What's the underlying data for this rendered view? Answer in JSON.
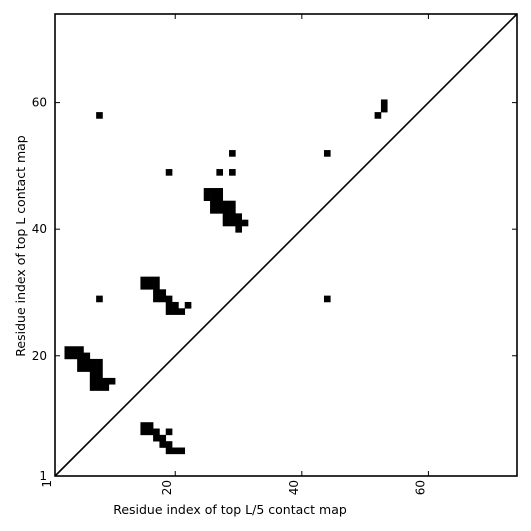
{
  "chart_data": {
    "type": "heatmap",
    "title": "",
    "xlabel": "Residue index of top L/5 contact map",
    "ylabel": "Residue index of top L contact map",
    "xlim": [
      1,
      74
    ],
    "ylim": [
      1,
      74
    ],
    "xticks": [
      1,
      20,
      40,
      60
    ],
    "yticks": [
      1,
      20,
      40,
      60
    ],
    "xtick_labels": [
      "1",
      "20",
      "40",
      "60"
    ],
    "ytick_labels": [
      "1",
      "20",
      "40",
      "60"
    ],
    "xtick_rotation": -90,
    "diagonal": true,
    "grid": false,
    "cell_color": "#000000",
    "line_color": "#000000",
    "background": "#ffffff",
    "cells_upper_top_L": [
      [
        3,
        20
      ],
      [
        3,
        21
      ],
      [
        4,
        20
      ],
      [
        4,
        21
      ],
      [
        5,
        20
      ],
      [
        5,
        21
      ],
      [
        5,
        18
      ],
      [
        5,
        19
      ],
      [
        6,
        18
      ],
      [
        6,
        19
      ],
      [
        6,
        20
      ],
      [
        7,
        18
      ],
      [
        7,
        19
      ],
      [
        8,
        18
      ],
      [
        8,
        19
      ],
      [
        7,
        15
      ],
      [
        7,
        16
      ],
      [
        7,
        17
      ],
      [
        8,
        15
      ],
      [
        8,
        16
      ],
      [
        8,
        17
      ],
      [
        9,
        15
      ],
      [
        9,
        16
      ],
      [
        10,
        16
      ],
      [
        8,
        29
      ],
      [
        8,
        58
      ],
      [
        15,
        31
      ],
      [
        15,
        32
      ],
      [
        16,
        31
      ],
      [
        16,
        32
      ],
      [
        17,
        31
      ],
      [
        17,
        32
      ],
      [
        17,
        29
      ],
      [
        17,
        30
      ],
      [
        18,
        29
      ],
      [
        18,
        30
      ],
      [
        19,
        29
      ],
      [
        19,
        27
      ],
      [
        19,
        28
      ],
      [
        20,
        27
      ],
      [
        20,
        28
      ],
      [
        21,
        27
      ],
      [
        22,
        28
      ],
      [
        19,
        49
      ],
      [
        25,
        45
      ],
      [
        25,
        46
      ],
      [
        26,
        45
      ],
      [
        26,
        46
      ],
      [
        27,
        45
      ],
      [
        27,
        46
      ],
      [
        26,
        43
      ],
      [
        26,
        44
      ],
      [
        27,
        43
      ],
      [
        27,
        44
      ],
      [
        28,
        43
      ],
      [
        28,
        44
      ],
      [
        29,
        43
      ],
      [
        29,
        44
      ],
      [
        28,
        41
      ],
      [
        28,
        42
      ],
      [
        29,
        41
      ],
      [
        29,
        42
      ],
      [
        30,
        41
      ],
      [
        30,
        42
      ],
      [
        31,
        41
      ],
      [
        30,
        40
      ],
      [
        27,
        49
      ],
      [
        29,
        49
      ],
      [
        29,
        52
      ],
      [
        44,
        29
      ],
      [
        44,
        52
      ],
      [
        52,
        58
      ],
      [
        53,
        59
      ],
      [
        53,
        60
      ]
    ],
    "cells_lower_top_L5": [
      [
        15,
        8
      ],
      [
        15,
        9
      ],
      [
        16,
        8
      ],
      [
        16,
        9
      ],
      [
        17,
        8
      ],
      [
        19,
        8
      ],
      [
        17,
        7
      ],
      [
        18,
        7
      ],
      [
        18,
        6
      ],
      [
        19,
        6
      ],
      [
        19,
        5
      ],
      [
        20,
        5
      ],
      [
        21,
        5
      ]
    ]
  }
}
